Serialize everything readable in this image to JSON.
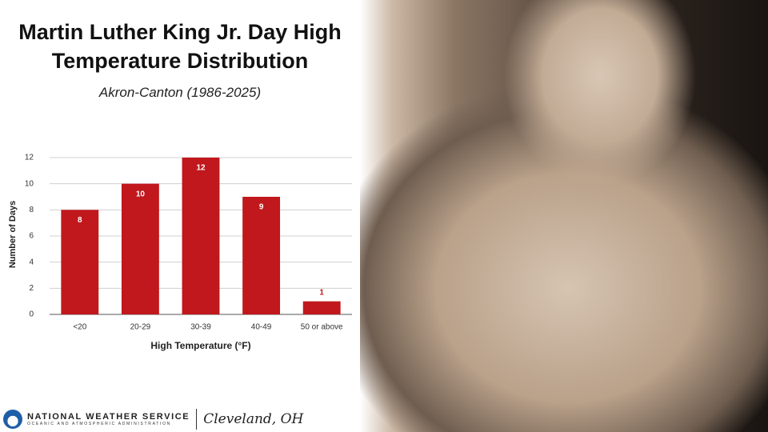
{
  "chart_data": {
    "type": "bar",
    "title": "Martin Luther King Jr. Day High Temperature Distribution",
    "subtitle": "Akron-Canton (1986-2025)",
    "x_label": "High Temperature (°F)",
    "y_label": "Number of Days",
    "categories": [
      "<20",
      "20-29",
      "30-39",
      "40-49",
      "50 or above"
    ],
    "values": [
      8,
      10,
      12,
      9,
      1
    ],
    "color": "#c0181c",
    "ylim": [
      0,
      12
    ],
    "yticks": [
      0,
      2,
      4,
      6,
      8,
      10,
      12
    ],
    "grid": true
  },
  "footer": {
    "agency": "NATIONAL WEATHER SERVICE",
    "agency_sub": "OCEANIC AND ATMOSPHERIC ADMINISTRATION",
    "office": "Cleveland, OH"
  }
}
